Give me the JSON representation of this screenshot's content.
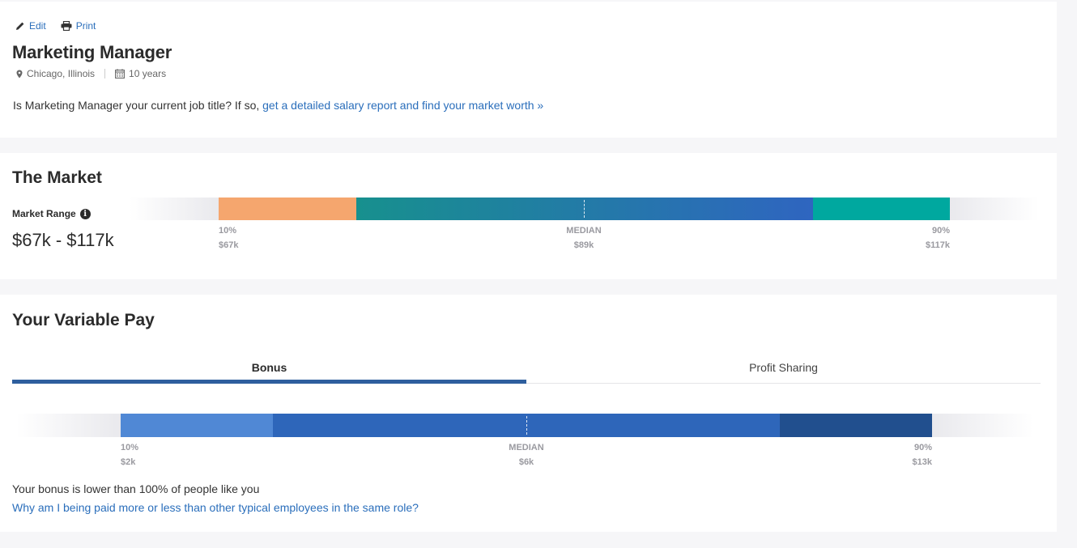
{
  "toolbar": {
    "edit_label": "Edit",
    "print_label": "Print"
  },
  "job": {
    "title": "Marketing Manager",
    "location": "Chicago, Illinois",
    "experience": "10 years"
  },
  "prompt": {
    "text": "Is Marketing Manager your current job title? If so, ",
    "link": "get a detailed salary report and find your market worth »"
  },
  "market": {
    "title": "The Market",
    "range_label": "Market Range",
    "range_value": "$67k - $117k",
    "ticks": {
      "low_pct": "10%",
      "low_value": "$67k",
      "median_label": "MEDIAN",
      "median_value": "$89k",
      "high_pct": "90%",
      "high_value": "$117k"
    },
    "colors": {
      "p10": "#f5a66e",
      "mid_start": "#17908e",
      "mid_end": "#2f65c0",
      "p90": "#00a89f"
    }
  },
  "variable_pay": {
    "title": "Your Variable Pay",
    "tabs": [
      {
        "label": "Bonus",
        "active": true
      },
      {
        "label": "Profit Sharing",
        "active": false
      }
    ],
    "ticks": {
      "low_pct": "10%",
      "low_value": "$2k",
      "median_label": "MEDIAN",
      "median_value": "$6k",
      "high_pct": "90%",
      "high_value": "$13k"
    },
    "colors": {
      "p10": "#5088d5",
      "mid": "#2e66ba",
      "p90": "#214f8e",
      "tab_underline": "#2f5f9e"
    },
    "comparison_text": "Your bonus is lower than 100% of people like you",
    "help_link": "Why am I being paid more or less than other typical employees in the same role?"
  }
}
